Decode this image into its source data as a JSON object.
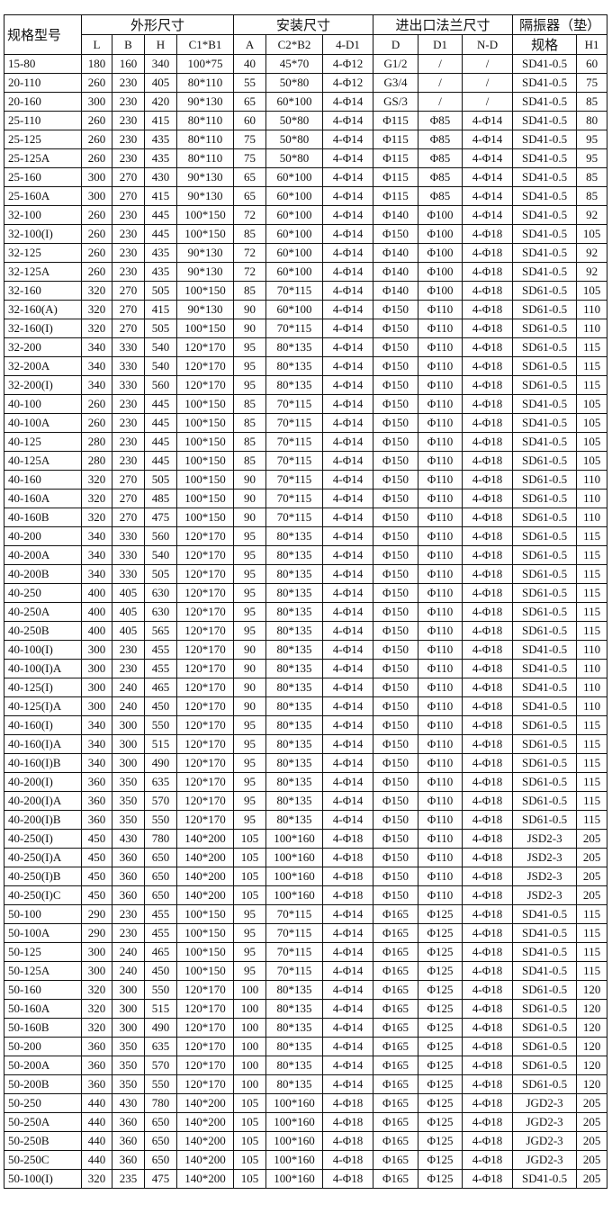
{
  "header": {
    "model": "规格型号",
    "groups": [
      "外形尺寸",
      "安装尺寸",
      "进出口法兰尺寸",
      "隔振器（垫）"
    ],
    "columns": [
      "L",
      "B",
      "H",
      "C1*B1",
      "A",
      "C2*B2",
      "4-D1",
      "D",
      "D1",
      "N-D",
      "规格",
      "H1"
    ]
  },
  "rows": [
    [
      "15-80",
      "180",
      "160",
      "340",
      "100*75",
      "40",
      "45*70",
      "4-Φ12",
      "G1/2",
      "/",
      "/",
      "SD41-0.5",
      "60"
    ],
    [
      "20-110",
      "260",
      "230",
      "405",
      "80*110",
      "55",
      "50*80",
      "4-Φ12",
      "G3/4",
      "/",
      "/",
      "SD41-0.5",
      "75"
    ],
    [
      "20-160",
      "300",
      "230",
      "420",
      "90*130",
      "65",
      "60*100",
      "4-Φ14",
      "GS/3",
      "/",
      "/",
      "SD41-0.5",
      "85"
    ],
    [
      "25-110",
      "260",
      "230",
      "415",
      "80*110",
      "60",
      "50*80",
      "4-Φ14",
      "Φ115",
      "Φ85",
      "4-Φ14",
      "SD41-0.5",
      "80"
    ],
    [
      "25-125",
      "260",
      "230",
      "435",
      "80*110",
      "75",
      "50*80",
      "4-Φ14",
      "Φ115",
      "Φ85",
      "4-Φ14",
      "SD41-0.5",
      "95"
    ],
    [
      "25-125A",
      "260",
      "230",
      "435",
      "80*110",
      "75",
      "50*80",
      "4-Φ14",
      "Φ115",
      "Φ85",
      "4-Φ14",
      "SD41-0.5",
      "95"
    ],
    [
      "25-160",
      "300",
      "270",
      "430",
      "90*130",
      "65",
      "60*100",
      "4-Φ14",
      "Φ115",
      "Φ85",
      "4-Φ14",
      "SD41-0.5",
      "85"
    ],
    [
      "25-160A",
      "300",
      "270",
      "415",
      "90*130",
      "65",
      "60*100",
      "4-Φ14",
      "Φ115",
      "Φ85",
      "4-Φ14",
      "SD41-0.5",
      "85"
    ],
    [
      "32-100",
      "260",
      "230",
      "445",
      "100*150",
      "72",
      "60*100",
      "4-Φ14",
      "Φ140",
      "Φ100",
      "4-Φ14",
      "SD41-0.5",
      "92"
    ],
    [
      "32-100(I)",
      "260",
      "230",
      "445",
      "100*150",
      "85",
      "60*100",
      "4-Φ14",
      "Φ150",
      "Φ100",
      "4-Φ18",
      "SD41-0.5",
      "105"
    ],
    [
      "32-125",
      "260",
      "230",
      "435",
      "90*130",
      "72",
      "60*100",
      "4-Φ14",
      "Φ140",
      "Φ100",
      "4-Φ18",
      "SD41-0.5",
      "92"
    ],
    [
      "32-125A",
      "260",
      "230",
      "435",
      "90*130",
      "72",
      "60*100",
      "4-Φ14",
      "Φ140",
      "Φ100",
      "4-Φ18",
      "SD41-0.5",
      "92"
    ],
    [
      "32-160",
      "320",
      "270",
      "505",
      "100*150",
      "85",
      "70*115",
      "4-Φ14",
      "Φ140",
      "Φ100",
      "4-Φ18",
      "SD61-0.5",
      "105"
    ],
    [
      "32-160(A)",
      "320",
      "270",
      "415",
      "90*130",
      "90",
      "60*100",
      "4-Φ14",
      "Φ150",
      "Φ110",
      "4-Φ18",
      "SD61-0.5",
      "110"
    ],
    [
      "32-160(I)",
      "320",
      "270",
      "505",
      "100*150",
      "90",
      "70*115",
      "4-Φ14",
      "Φ150",
      "Φ110",
      "4-Φ18",
      "SD61-0.5",
      "110"
    ],
    [
      "32-200",
      "340",
      "330",
      "540",
      "120*170",
      "95",
      "80*135",
      "4-Φ14",
      "Φ150",
      "Φ110",
      "4-Φ18",
      "SD61-0.5",
      "115"
    ],
    [
      "32-200A",
      "340",
      "330",
      "540",
      "120*170",
      "95",
      "80*135",
      "4-Φ14",
      "Φ150",
      "Φ110",
      "4-Φ18",
      "SD61-0.5",
      "115"
    ],
    [
      "32-200(I)",
      "340",
      "330",
      "560",
      "120*170",
      "95",
      "80*135",
      "4-Φ14",
      "Φ150",
      "Φ110",
      "4-Φ18",
      "SD61-0.5",
      "115"
    ],
    [
      "40-100",
      "260",
      "230",
      "445",
      "100*150",
      "85",
      "70*115",
      "4-Φ14",
      "Φ150",
      "Φ110",
      "4-Φ18",
      "SD41-0.5",
      "105"
    ],
    [
      "40-100A",
      "260",
      "230",
      "445",
      "100*150",
      "85",
      "70*115",
      "4-Φ14",
      "Φ150",
      "Φ110",
      "4-Φ18",
      "SD41-0.5",
      "105"
    ],
    [
      "40-125",
      "280",
      "230",
      "445",
      "100*150",
      "85",
      "70*115",
      "4-Φ14",
      "Φ150",
      "Φ110",
      "4-Φ18",
      "SD41-0.5",
      "105"
    ],
    [
      "40-125A",
      "280",
      "230",
      "445",
      "100*150",
      "85",
      "70*115",
      "4-Φ14",
      "Φ150",
      "Φ110",
      "4-Φ18",
      "SD61-0.5",
      "105"
    ],
    [
      "40-160",
      "320",
      "270",
      "505",
      "100*150",
      "90",
      "70*115",
      "4-Φ14",
      "Φ150",
      "Φ110",
      "4-Φ18",
      "SD61-0.5",
      "110"
    ],
    [
      "40-160A",
      "320",
      "270",
      "485",
      "100*150",
      "90",
      "70*115",
      "4-Φ14",
      "Φ150",
      "Φ110",
      "4-Φ18",
      "SD61-0.5",
      "110"
    ],
    [
      "40-160B",
      "320",
      "270",
      "475",
      "100*150",
      "90",
      "70*115",
      "4-Φ14",
      "Φ150",
      "Φ110",
      "4-Φ18",
      "SD61-0.5",
      "110"
    ],
    [
      "40-200",
      "340",
      "330",
      "560",
      "120*170",
      "95",
      "80*135",
      "4-Φ14",
      "Φ150",
      "Φ110",
      "4-Φ18",
      "SD61-0.5",
      "115"
    ],
    [
      "40-200A",
      "340",
      "330",
      "540",
      "120*170",
      "95",
      "80*135",
      "4-Φ14",
      "Φ150",
      "Φ110",
      "4-Φ18",
      "SD61-0.5",
      "115"
    ],
    [
      "40-200B",
      "340",
      "330",
      "505",
      "120*170",
      "95",
      "80*135",
      "4-Φ14",
      "Φ150",
      "Φ110",
      "4-Φ18",
      "SD61-0.5",
      "115"
    ],
    [
      "40-250",
      "400",
      "405",
      "630",
      "120*170",
      "95",
      "80*135",
      "4-Φ14",
      "Φ150",
      "Φ110",
      "4-Φ18",
      "SD61-0.5",
      "115"
    ],
    [
      "40-250A",
      "400",
      "405",
      "630",
      "120*170",
      "95",
      "80*135",
      "4-Φ14",
      "Φ150",
      "Φ110",
      "4-Φ18",
      "SD61-0.5",
      "115"
    ],
    [
      "40-250B",
      "400",
      "405",
      "565",
      "120*170",
      "95",
      "80*135",
      "4-Φ14",
      "Φ150",
      "Φ110",
      "4-Φ18",
      "SD61-0.5",
      "115"
    ],
    [
      "40-100(I)",
      "300",
      "230",
      "455",
      "120*170",
      "90",
      "80*135",
      "4-Φ14",
      "Φ150",
      "Φ110",
      "4-Φ18",
      "SD41-0.5",
      "110"
    ],
    [
      "40-100(I)A",
      "300",
      "230",
      "455",
      "120*170",
      "90",
      "80*135",
      "4-Φ14",
      "Φ150",
      "Φ110",
      "4-Φ18",
      "SD41-0.5",
      "110"
    ],
    [
      "40-125(I)",
      "300",
      "240",
      "465",
      "120*170",
      "90",
      "80*135",
      "4-Φ14",
      "Φ150",
      "Φ110",
      "4-Φ18",
      "SD41-0.5",
      "110"
    ],
    [
      "40-125(I)A",
      "300",
      "240",
      "450",
      "120*170",
      "90",
      "80*135",
      "4-Φ14",
      "Φ150",
      "Φ110",
      "4-Φ18",
      "SD41-0.5",
      "110"
    ],
    [
      "40-160(I)",
      "340",
      "300",
      "550",
      "120*170",
      "95",
      "80*135",
      "4-Φ14",
      "Φ150",
      "Φ110",
      "4-Φ18",
      "SD61-0.5",
      "115"
    ],
    [
      "40-160(I)A",
      "340",
      "300",
      "515",
      "120*170",
      "95",
      "80*135",
      "4-Φ14",
      "Φ150",
      "Φ110",
      "4-Φ18",
      "SD61-0.5",
      "115"
    ],
    [
      "40-160(I)B",
      "340",
      "300",
      "490",
      "120*170",
      "95",
      "80*135",
      "4-Φ14",
      "Φ150",
      "Φ110",
      "4-Φ18",
      "SD61-0.5",
      "115"
    ],
    [
      "40-200(I)",
      "360",
      "350",
      "635",
      "120*170",
      "95",
      "80*135",
      "4-Φ14",
      "Φ150",
      "Φ110",
      "4-Φ18",
      "SD61-0.5",
      "115"
    ],
    [
      "40-200(I)A",
      "360",
      "350",
      "570",
      "120*170",
      "95",
      "80*135",
      "4-Φ14",
      "Φ150",
      "Φ110",
      "4-Φ18",
      "SD61-0.5",
      "115"
    ],
    [
      "40-200(I)B",
      "360",
      "350",
      "550",
      "120*170",
      "95",
      "80*135",
      "4-Φ14",
      "Φ150",
      "Φ110",
      "4-Φ18",
      "SD61-0.5",
      "115"
    ],
    [
      "40-250(I)",
      "450",
      "430",
      "780",
      "140*200",
      "105",
      "100*160",
      "4-Φ18",
      "Φ150",
      "Φ110",
      "4-Φ18",
      "JSD2-3",
      "205"
    ],
    [
      "40-250(I)A",
      "450",
      "360",
      "650",
      "140*200",
      "105",
      "100*160",
      "4-Φ18",
      "Φ150",
      "Φ110",
      "4-Φ18",
      "JSD2-3",
      "205"
    ],
    [
      "40-250(I)B",
      "450",
      "360",
      "650",
      "140*200",
      "105",
      "100*160",
      "4-Φ18",
      "Φ150",
      "Φ110",
      "4-Φ18",
      "JSD2-3",
      "205"
    ],
    [
      "40-250(I)C",
      "450",
      "360",
      "650",
      "140*200",
      "105",
      "100*160",
      "4-Φ18",
      "Φ150",
      "Φ110",
      "4-Φ18",
      "JSD2-3",
      "205"
    ],
    [
      "50-100",
      "290",
      "230",
      "455",
      "100*150",
      "95",
      "70*115",
      "4-Φ14",
      "Φ165",
      "Φ125",
      "4-Φ18",
      "SD41-0.5",
      "115"
    ],
    [
      "50-100A",
      "290",
      "230",
      "455",
      "100*150",
      "95",
      "70*115",
      "4-Φ14",
      "Φ165",
      "Φ125",
      "4-Φ18",
      "SD41-0.5",
      "115"
    ],
    [
      "50-125",
      "300",
      "240",
      "465",
      "100*150",
      "95",
      "70*115",
      "4-Φ14",
      "Φ165",
      "Φ125",
      "4-Φ18",
      "SD41-0.5",
      "115"
    ],
    [
      "50-125A",
      "300",
      "240",
      "450",
      "100*150",
      "95",
      "70*115",
      "4-Φ14",
      "Φ165",
      "Φ125",
      "4-Φ18",
      "SD41-0.5",
      "115"
    ],
    [
      "50-160",
      "320",
      "300",
      "550",
      "120*170",
      "100",
      "80*135",
      "4-Φ14",
      "Φ165",
      "Φ125",
      "4-Φ18",
      "SD61-0.5",
      "120"
    ],
    [
      "50-160A",
      "320",
      "300",
      "515",
      "120*170",
      "100",
      "80*135",
      "4-Φ14",
      "Φ165",
      "Φ125",
      "4-Φ18",
      "SD61-0.5",
      "120"
    ],
    [
      "50-160B",
      "320",
      "300",
      "490",
      "120*170",
      "100",
      "80*135",
      "4-Φ14",
      "Φ165",
      "Φ125",
      "4-Φ18",
      "SD61-0.5",
      "120"
    ],
    [
      "50-200",
      "360",
      "350",
      "635",
      "120*170",
      "100",
      "80*135",
      "4-Φ14",
      "Φ165",
      "Φ125",
      "4-Φ18",
      "SD61-0.5",
      "120"
    ],
    [
      "50-200A",
      "360",
      "350",
      "570",
      "120*170",
      "100",
      "80*135",
      "4-Φ14",
      "Φ165",
      "Φ125",
      "4-Φ18",
      "SD61-0.5",
      "120"
    ],
    [
      "50-200B",
      "360",
      "350",
      "550",
      "120*170",
      "100",
      "80*135",
      "4-Φ14",
      "Φ165",
      "Φ125",
      "4-Φ18",
      "SD61-0.5",
      "120"
    ],
    [
      "50-250",
      "440",
      "430",
      "780",
      "140*200",
      "105",
      "100*160",
      "4-Φ18",
      "Φ165",
      "Φ125",
      "4-Φ18",
      "JGD2-3",
      "205"
    ],
    [
      "50-250A",
      "440",
      "360",
      "650",
      "140*200",
      "105",
      "100*160",
      "4-Φ18",
      "Φ165",
      "Φ125",
      "4-Φ18",
      "JGD2-3",
      "205"
    ],
    [
      "50-250B",
      "440",
      "360",
      "650",
      "140*200",
      "105",
      "100*160",
      "4-Φ18",
      "Φ165",
      "Φ125",
      "4-Φ18",
      "JGD2-3",
      "205"
    ],
    [
      "50-250C",
      "440",
      "360",
      "650",
      "140*200",
      "105",
      "100*160",
      "4-Φ18",
      "Φ165",
      "Φ125",
      "4-Φ18",
      "JGD2-3",
      "205"
    ],
    [
      "50-100(I)",
      "320",
      "235",
      "475",
      "140*200",
      "105",
      "100*160",
      "4-Φ18",
      "Φ165",
      "Φ125",
      "4-Φ18",
      "SD41-0.5",
      "205"
    ]
  ]
}
